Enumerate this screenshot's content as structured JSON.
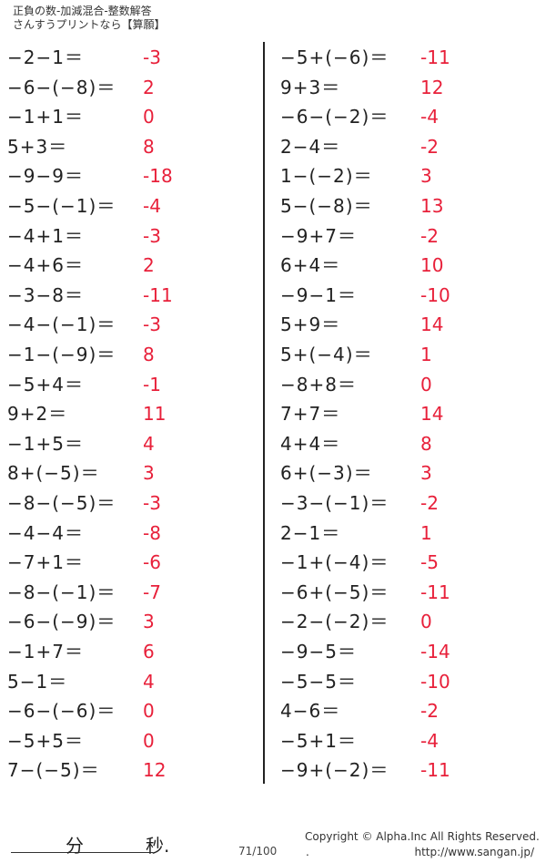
{
  "header": {
    "title": "正負の数-加減混合-整数解答",
    "subtitle": "さんすうプリントなら【算願】"
  },
  "left": [
    [
      "−2−1＝",
      "-3"
    ],
    [
      "−6−(−8)＝",
      "2"
    ],
    [
      "−1+1＝",
      "0"
    ],
    [
      "5+3＝",
      "8"
    ],
    [
      "−9−9＝",
      "-18"
    ],
    [
      "−5−(−1)＝",
      "-4"
    ],
    [
      "−4+1＝",
      "-3"
    ],
    [
      "−4+6＝",
      "2"
    ],
    [
      "−3−8＝",
      "-11"
    ],
    [
      "−4−(−1)＝",
      "-3"
    ],
    [
      "−1−(−9)＝",
      "8"
    ],
    [
      "−5+4＝",
      "-1"
    ],
    [
      "9+2＝",
      "11"
    ],
    [
      "−1+5＝",
      "4"
    ],
    [
      "8+(−5)＝",
      "3"
    ],
    [
      "−8−(−5)＝",
      "-3"
    ],
    [
      "−4−4＝",
      "-8"
    ],
    [
      "−7+1＝",
      "-6"
    ],
    [
      "−8−(−1)＝",
      "-7"
    ],
    [
      "−6−(−9)＝",
      "3"
    ],
    [
      "−1+7＝",
      "6"
    ],
    [
      "5−1＝",
      "4"
    ],
    [
      "−6−(−6)＝",
      "0"
    ],
    [
      "−5+5＝",
      "0"
    ],
    [
      "7−(−5)＝",
      "12"
    ]
  ],
  "right": [
    [
      "−5+(−6)＝",
      "-11"
    ],
    [
      "9+3＝",
      "12"
    ],
    [
      "−6−(−2)＝",
      "-4"
    ],
    [
      "2−4＝",
      "-2"
    ],
    [
      "1−(−2)＝",
      "3"
    ],
    [
      "5−(−8)＝",
      "13"
    ],
    [
      "−9+7＝",
      "-2"
    ],
    [
      "6+4＝",
      "10"
    ],
    [
      "−9−1＝",
      "-10"
    ],
    [
      "5+9＝",
      "14"
    ],
    [
      "5+(−4)＝",
      "1"
    ],
    [
      "−8+8＝",
      "0"
    ],
    [
      "7+7＝",
      "14"
    ],
    [
      "4+4＝",
      "8"
    ],
    [
      "6+(−3)＝",
      "3"
    ],
    [
      "−3−(−1)＝",
      "-2"
    ],
    [
      "2−1＝",
      "1"
    ],
    [
      "−1+(−4)＝",
      "-5"
    ],
    [
      "−6+(−5)＝",
      "-11"
    ],
    [
      "−2−(−2)＝",
      "0"
    ],
    [
      "−9−5＝",
      "-14"
    ],
    [
      "−5−5＝",
      "-10"
    ],
    [
      "4−6＝",
      "-2"
    ],
    [
      "−5+1＝",
      "-4"
    ],
    [
      "−9+(−2)＝",
      "-11"
    ]
  ],
  "footer": {
    "minutes": "分",
    "seconds": "秒.",
    "page": "71/100",
    "copyright": "Copyright ©  Alpha.Inc All Rights Reserved.",
    "dot": ".",
    "url": "http://www.sangan.jp/"
  },
  "colors": {
    "answer": "#e8203a",
    "text": "#222222"
  }
}
